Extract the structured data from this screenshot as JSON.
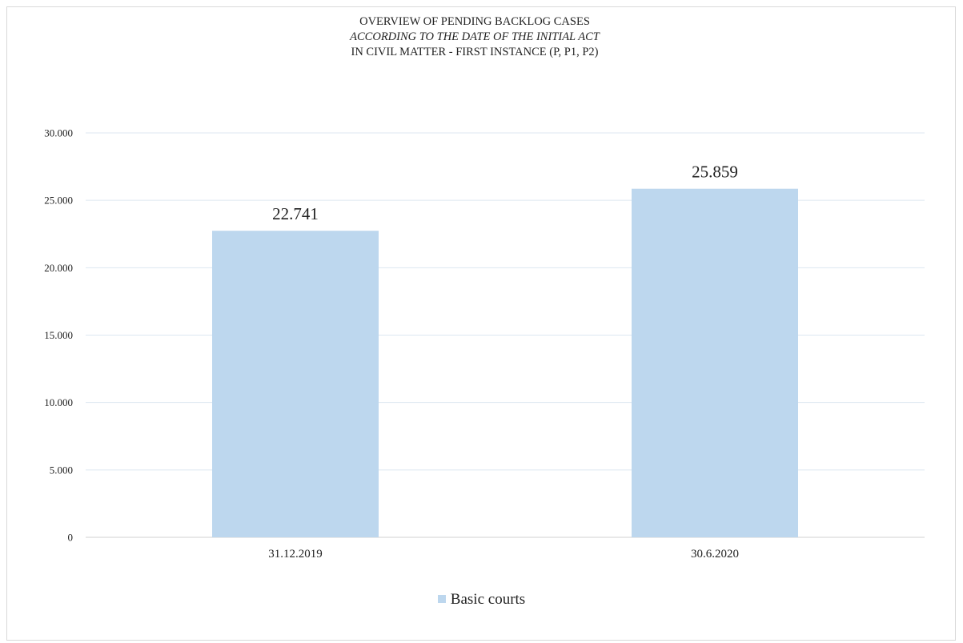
{
  "chart_data": {
    "type": "bar",
    "title_lines": [
      "OVERVIEW OF PENDING BACKLOG CASES",
      "ACCORDING TO THE DATE OF THE INITIAL ACT",
      "IN CIVIL MATTER  - FIRST INSTANCE (P, P1, P2)"
    ],
    "categories": [
      "31.12.2019",
      "30.6.2020"
    ],
    "series": [
      {
        "name": "Basic courts",
        "values": [
          22741,
          25859
        ],
        "labels": [
          "22.741",
          "25.859"
        ],
        "color": "#bdd7ee"
      }
    ],
    "ylim": [
      0,
      30000
    ],
    "yticks": [
      0,
      5000,
      10000,
      15000,
      20000,
      25000,
      30000
    ],
    "ytick_labels": [
      "0",
      "5.000",
      "10.000",
      "15.000",
      "20.000",
      "25.000",
      "30.000"
    ],
    "grid": true,
    "gridline_color": "#dde7f1",
    "legend_position": "bottom"
  }
}
